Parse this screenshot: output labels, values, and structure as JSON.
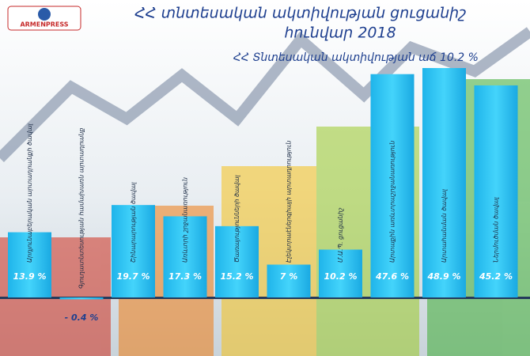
{
  "logo": "ARMENPRESS",
  "chart_data": {
    "type": "bar",
    "title": "ՀՀ տնտեսական ակտիվության ցուցանիշ",
    "subtitle": "հունվար 2018",
    "annotation": "ՀՀ Տնտեսական ակտիվության աճ 10.2 %",
    "categories": [
      "Արդյունաբերական արտադրանքի ծավալ",
      "Գյուղատնտեսության համախառն արտադրանք",
      "Շինարարության ծավալ",
      "Առևտրի շրջանառություն",
      "Ծառայությունների ծավալ",
      "Էլեկտրաէներգիայի արտադրություն",
      "Մ.Ա.Պ. ցուցանիշ",
      "Արտաքին առևտրաշրջանառություն",
      "Արտահանման ծավալ",
      "Ներմուծման ծավալ"
    ],
    "values": [
      13.9,
      -0.4,
      19.7,
      17.3,
      15.2,
      7,
      10.2,
      47.6,
      48.9,
      45.2
    ],
    "value_labels": [
      "13.9 %",
      "- 0.4 %",
      "19.7 %",
      "17.3 %",
      "15.2 %",
      "7 %",
      "10.2 %",
      "47.6 %",
      "48.9 %",
      "45.2 %"
    ],
    "color": "#2cc3f2"
  }
}
